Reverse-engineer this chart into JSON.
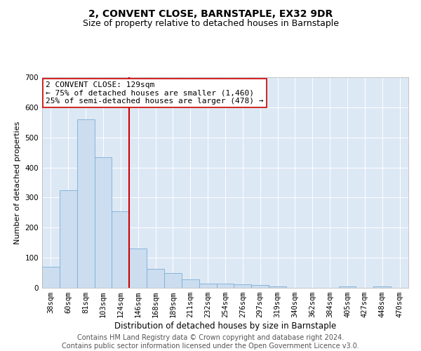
{
  "title": "2, CONVENT CLOSE, BARNSTAPLE, EX32 9DR",
  "subtitle": "Size of property relative to detached houses in Barnstaple",
  "xlabel": "Distribution of detached houses by size in Barnstaple",
  "ylabel": "Number of detached properties",
  "categories": [
    "38sqm",
    "60sqm",
    "81sqm",
    "103sqm",
    "124sqm",
    "146sqm",
    "168sqm",
    "189sqm",
    "211sqm",
    "232sqm",
    "254sqm",
    "276sqm",
    "297sqm",
    "319sqm",
    "340sqm",
    "362sqm",
    "384sqm",
    "405sqm",
    "427sqm",
    "448sqm",
    "470sqm"
  ],
  "values": [
    70,
    325,
    560,
    435,
    255,
    130,
    63,
    50,
    28,
    15,
    14,
    11,
    10,
    5,
    0,
    0,
    0,
    5,
    0,
    5,
    0
  ],
  "bar_color": "#ccddf0",
  "bar_edge_color": "#7aafd4",
  "vline_x": 4.5,
  "vline_color": "#cc0000",
  "annotation_text": "2 CONVENT CLOSE: 129sqm\n← 75% of detached houses are smaller (1,460)\n25% of semi-detached houses are larger (478) →",
  "annotation_box_color": "#ffffff",
  "annotation_box_edge_color": "#cc0000",
  "ylim": [
    0,
    700
  ],
  "yticks": [
    0,
    100,
    200,
    300,
    400,
    500,
    600,
    700
  ],
  "plot_bg_color": "#dde8f5",
  "grid_color": "#ffffff",
  "footer_line1": "Contains HM Land Registry data © Crown copyright and database right 2024.",
  "footer_line2": "Contains public sector information licensed under the Open Government Licence v3.0.",
  "title_fontsize": 10,
  "subtitle_fontsize": 9,
  "xlabel_fontsize": 8.5,
  "ylabel_fontsize": 8,
  "tick_fontsize": 7.5,
  "footer_fontsize": 7,
  "annotation_fontsize": 8
}
